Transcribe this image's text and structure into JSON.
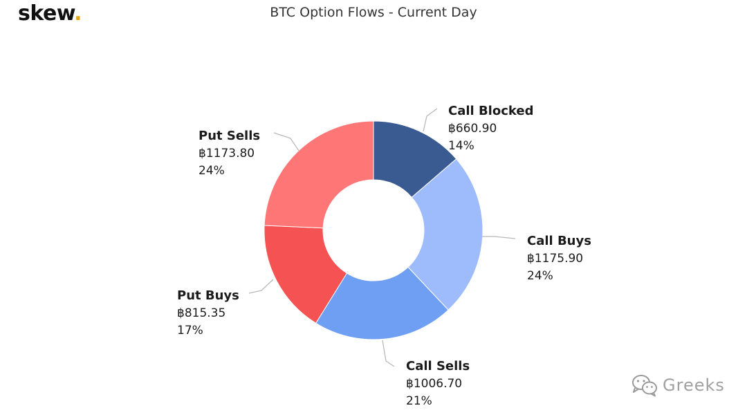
{
  "header": {
    "logo_text": "skew",
    "logo_dot": "."
  },
  "watermark": {
    "text": "Greeks",
    "icon": "wechat-icon"
  },
  "colors": {
    "logo_dot": "#e8a317"
  },
  "chart_data": {
    "type": "pie",
    "donut": true,
    "title": "BTC Option Flows - Current Day",
    "unit_symbol": "฿",
    "slices": [
      {
        "name": "Call Blocked",
        "value": 660.9,
        "value_label": "฿660.90",
        "percent_label": "14%",
        "color": "#3a5a92"
      },
      {
        "name": "Call Buys",
        "value": 1175.9,
        "value_label": "฿1175.90",
        "percent_label": "24%",
        "color": "#9ebcfb"
      },
      {
        "name": "Call Sells",
        "value": 1006.7,
        "value_label": "฿1006.70",
        "percent_label": "21%",
        "color": "#6f9ff3"
      },
      {
        "name": "Put Buys",
        "value": 815.35,
        "value_label": "฿815.35",
        "percent_label": "17%",
        "color": "#f55353"
      },
      {
        "name": "Put Sells",
        "value": 1173.8,
        "value_label": "฿1173.80",
        "percent_label": "24%",
        "color": "#ff7676"
      }
    ],
    "legend": "none"
  }
}
